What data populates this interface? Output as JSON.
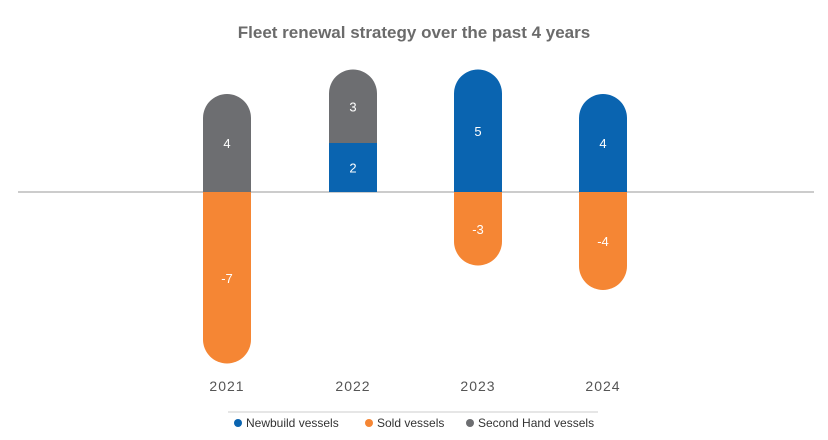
{
  "chart_data": {
    "type": "bar",
    "stacked": true,
    "title": "Fleet renewal strategy over the past 4 years",
    "xlabel": "",
    "ylabel": "",
    "categories": [
      "2021",
      "2022",
      "2023",
      "2024"
    ],
    "series": [
      {
        "name": "Newbuild vessels",
        "values": [
          0,
          2,
          5,
          4
        ],
        "color": "#0a64b0"
      },
      {
        "name": "Sold vessels",
        "values": [
          -7,
          0,
          -3,
          -4
        ],
        "color": "#f58634"
      },
      {
        "name": "Second Hand vessels",
        "values": [
          4,
          3,
          0,
          0
        ],
        "color": "#6d6e71"
      }
    ],
    "ylim": [
      -7,
      5
    ],
    "grid": false,
    "zero_line": true,
    "legend_position": "bottom"
  }
}
